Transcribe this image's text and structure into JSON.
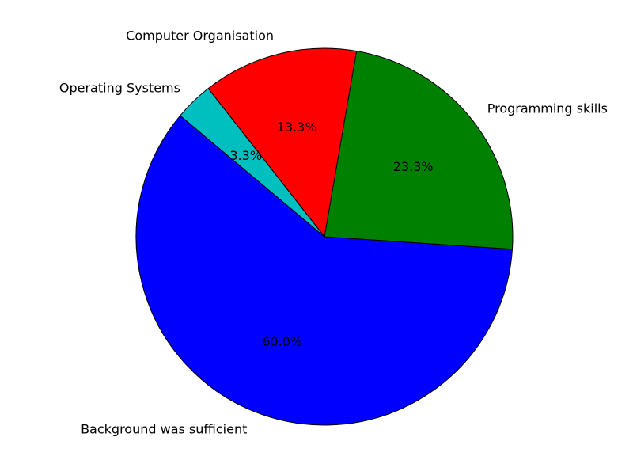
{
  "chart_data": {
    "type": "pie",
    "slices": [
      {
        "label": "Background was sufficient",
        "value": 60.0,
        "pct_label": "60.0%",
        "color": "#0000ff"
      },
      {
        "label": "Programming skills",
        "value": 23.3,
        "pct_label": "23.3%",
        "color": "#008000"
      },
      {
        "label": "Computer Organisation",
        "value": 13.3,
        "pct_label": "13.3%",
        "color": "#ff0000"
      },
      {
        "label": "Operating Systems",
        "value": 3.3,
        "pct_label": "3.3%",
        "color": "#00bfbf"
      }
    ]
  }
}
